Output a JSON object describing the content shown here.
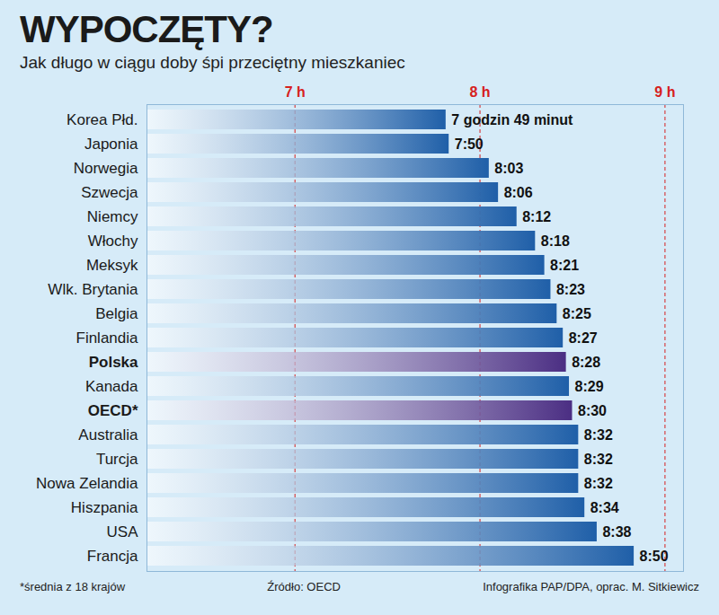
{
  "chart_data": {
    "type": "bar",
    "orientation": "horizontal",
    "title": "WYPOCZĘTY?",
    "subtitle": "Jak długo w ciągu doby śpi przeciętny mieszkaniec",
    "categories": [
      "Korea Płd.",
      "Japonia",
      "Norwegia",
      "Szwecja",
      "Niemcy",
      "Włochy",
      "Meksyk",
      "Wlk. Brytania",
      "Belgia",
      "Finlandia",
      "Polska",
      "Kanada",
      "OECD*",
      "Australia",
      "Turcja",
      "Nowa Zelandia",
      "Hiszpania",
      "USA",
      "Francja"
    ],
    "values": [
      7.8167,
      7.8333,
      8.05,
      8.1,
      8.2,
      8.3,
      8.35,
      8.3833,
      8.4167,
      8.45,
      8.4667,
      8.4833,
      8.5,
      8.5333,
      8.5333,
      8.5333,
      8.5667,
      8.6333,
      8.8333
    ],
    "value_labels": [
      "7 godzin 49 minut",
      "7:50",
      "8:03",
      "8:06",
      "8:12",
      "8:18",
      "8:21",
      "8:23",
      "8:25",
      "8:27",
      "8:28",
      "8:29",
      "8:30",
      "8:32",
      "8:32",
      "8:32",
      "8:34",
      "8:38",
      "8:50"
    ],
    "colors": [
      "#1f5fa8",
      "#1f5fa8",
      "#1f5fa8",
      "#1f5fa8",
      "#1f5fa8",
      "#1f5fa8",
      "#1f5fa8",
      "#1f5fa8",
      "#1f5fa8",
      "#1f5fa8",
      "#4b2e83",
      "#1f5fa8",
      "#4b2e83",
      "#1f5fa8",
      "#1f5fa8",
      "#1f5fa8",
      "#1f5fa8",
      "#1f5fa8",
      "#1f5fa8"
    ],
    "xlim": [
      6.2,
      9.1
    ],
    "xticks": [
      {
        "value": 7,
        "label": "7 h"
      },
      {
        "value": 8,
        "label": "8 h"
      },
      {
        "value": 9,
        "label": "9 h"
      }
    ],
    "grid": true,
    "data_labels": true,
    "footnote": "*średnia z 18 krajów",
    "source": "Źródło: OECD",
    "credit": "Infografika PAP/DPA, oprac. M. Sitkiewicz"
  }
}
